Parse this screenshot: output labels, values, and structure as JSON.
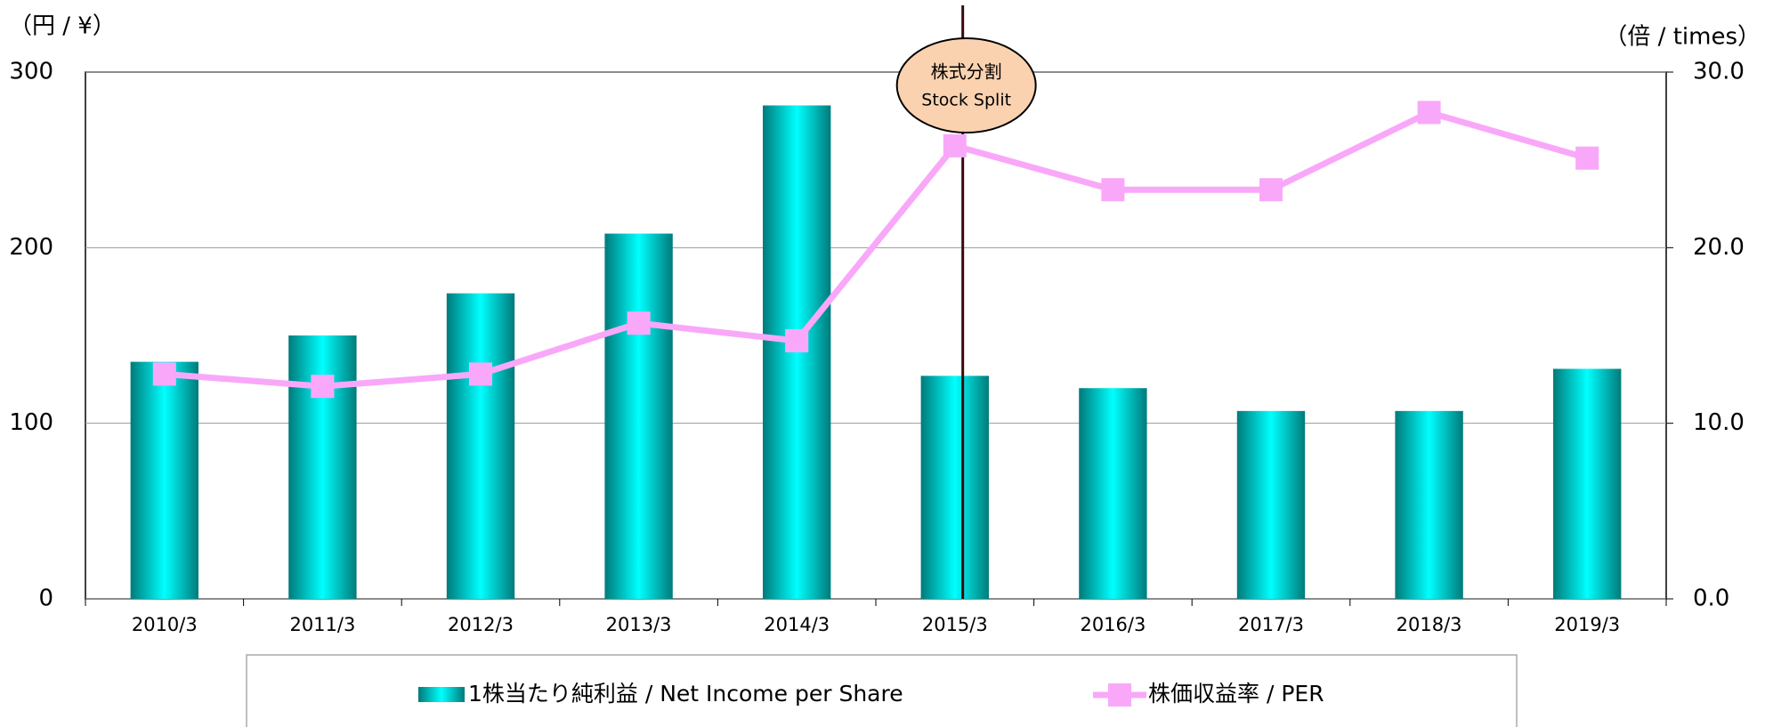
{
  "chart_data": {
    "type": "bar_line",
    "y_unit": "（円 / ¥）",
    "y2_unit": "（倍 / times）",
    "annotation": [
      "株式分割",
      "Stock Split"
    ],
    "categories": [
      "2010/3",
      "2011/3",
      "2012/3",
      "2013/3",
      "2014/3",
      "2015/3",
      "2016/3",
      "2017/3",
      "2018/3",
      "2019/3"
    ],
    "series": [
      {
        "name": "1株当たり純利益 / Net Income per Share",
        "type": "bar",
        "color": "#00e5e5",
        "values": [
          135,
          150,
          174,
          208,
          281,
          127,
          120,
          107,
          107,
          131
        ]
      },
      {
        "name": "株価収益率 / PER",
        "type": "line",
        "axis": "y2",
        "color": "#f9a8f9",
        "values": [
          12.8,
          12.1,
          12.8,
          15.7,
          14.7,
          25.8,
          23.3,
          23.3,
          27.7,
          25.1
        ]
      }
    ],
    "ylim": [
      0,
      300
    ],
    "yticks": [
      0,
      100,
      200,
      300
    ],
    "y2lim": [
      0,
      30
    ],
    "y2ticks": [
      {
        "value": 0,
        "label": "0.0"
      },
      {
        "value": 10,
        "label": "10.0"
      },
      {
        "value": 20,
        "label": "20.0"
      },
      {
        "value": 30,
        "label": "30.0"
      }
    ],
    "grid": true
  }
}
